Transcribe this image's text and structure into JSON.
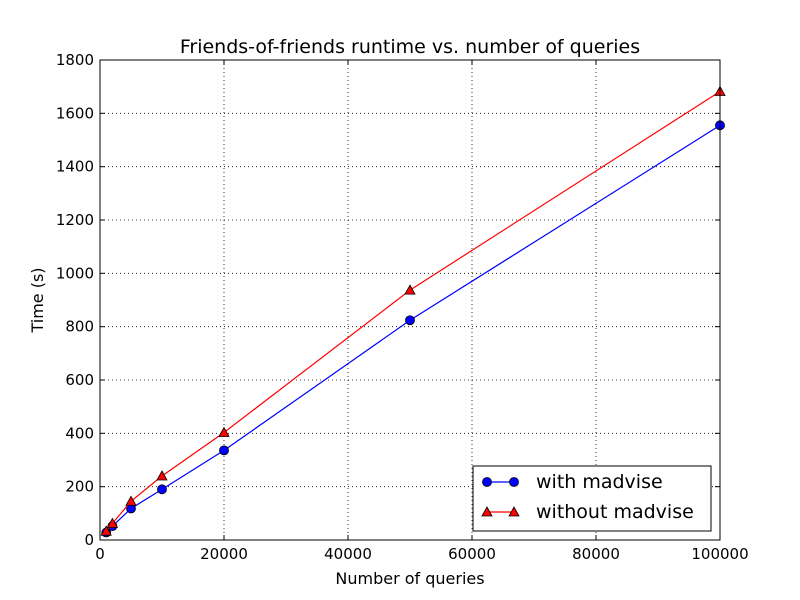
{
  "chart_data": {
    "type": "line",
    "title": "Friends-of-friends runtime vs. number of queries",
    "xlabel": "Number of queries",
    "ylabel": "Time (s)",
    "xlim": [
      0,
      100000
    ],
    "ylim": [
      0,
      1800
    ],
    "xticks": [
      0,
      20000,
      40000,
      60000,
      80000,
      100000
    ],
    "yticks": [
      0,
      200,
      400,
      600,
      800,
      1000,
      1200,
      1400,
      1600,
      1800
    ],
    "grid": true,
    "legend_position": "bottom-right",
    "x": [
      1000,
      2000,
      5000,
      10000,
      20000,
      50000,
      100000
    ],
    "series": [
      {
        "name": "with madvise",
        "values": [
          28,
          52,
          118,
          190,
          336,
          824,
          1555
        ],
        "color": "#0000ff",
        "marker": "circle"
      },
      {
        "name": "without madvise",
        "values": [
          33,
          62,
          145,
          240,
          403,
          937,
          1682
        ],
        "color": "#ff0000",
        "marker": "triangle"
      }
    ]
  }
}
